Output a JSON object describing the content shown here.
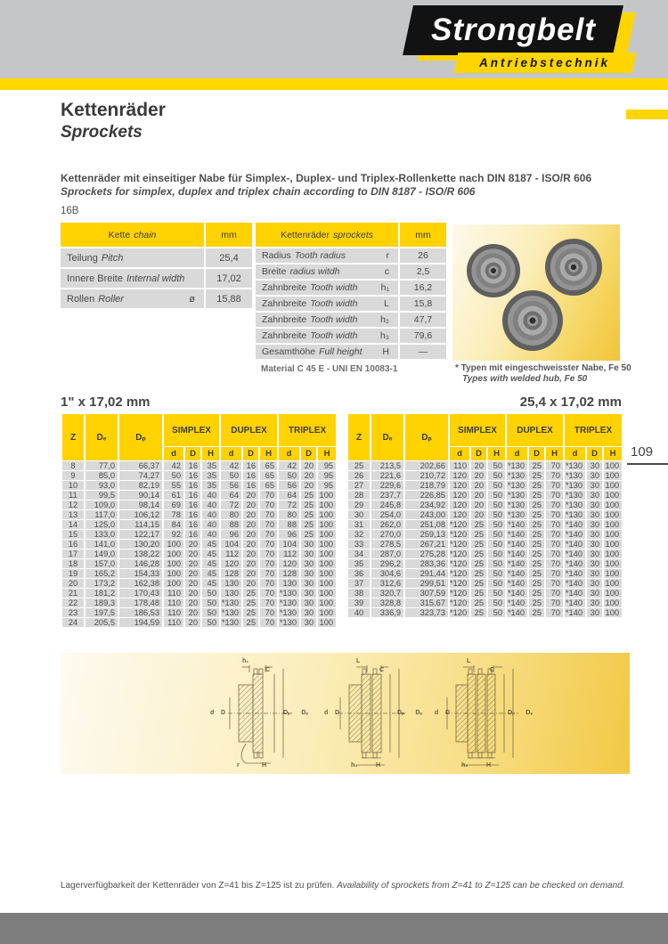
{
  "brand": {
    "name": "Strongbelt",
    "tagline": "Antriebstechnik"
  },
  "colors": {
    "brand_yellow": "#ffd500",
    "table_header_yellow": "#ffd200",
    "row_gray": "#d9d9d9",
    "top_band_gray": "#c5c6c8",
    "bottom_band_gray": "#7d7d7e"
  },
  "titles": {
    "de": "Kettenräder",
    "en": "Sprockets"
  },
  "intro": {
    "de": "Kettenräder mit einseitiger Nabe für Simplex-, Duplex- und Triplex-Rollenkette nach DIN 8187 - ISO/R 606",
    "en": "Sprockets for simplex, duplex and triplex chain according to DIN 8187 - ISO/R 606"
  },
  "series": "16B",
  "page_number": "109",
  "chain_table": {
    "header": {
      "label_de": "Kette",
      "label_en": "chain",
      "unit": "mm"
    },
    "rows": [
      {
        "de": "Teilung",
        "en": "Pitch",
        "sym": "",
        "value": "25,4"
      },
      {
        "de": "Innere Breite",
        "en": "Internal width",
        "sym": "",
        "value": "17,02"
      },
      {
        "de": "Rollen",
        "en": "Roller",
        "sym": "ø",
        "value": "15,88"
      }
    ]
  },
  "sprocket_table": {
    "header": {
      "label_de": "Kettenräder",
      "label_en": "sprockets",
      "unit": "mm"
    },
    "rows": [
      {
        "de": "Radius",
        "en": "Tooth radius",
        "sym": "r",
        "value": "26"
      },
      {
        "de": "Breite",
        "en": "radius witdh",
        "sym": "c",
        "value": "2,5"
      },
      {
        "de": "Zahnbreite",
        "en": "Tooth width",
        "sym": "h₁",
        "value": "16,2"
      },
      {
        "de": "Zahnbreite",
        "en": "Tooth width",
        "sym": "L",
        "value": "15,8"
      },
      {
        "de": "Zahnbreite",
        "en": "Tooth width",
        "sym": "h₂",
        "value": "47,7"
      },
      {
        "de": "Zahnbreite",
        "en": "Tooth width",
        "sym": "h₃",
        "value": "79,6"
      },
      {
        "de": "Gesamthöhe",
        "en": "Full height",
        "sym": "H",
        "value": "—"
      }
    ],
    "material_note": "Material C 45 E - UNI EN 10083-1"
  },
  "photo_note": {
    "de": "* Typen mit eingeschweisster Nabe, Fe 50",
    "en": "Types with welded hub, Fe 50"
  },
  "tables": {
    "headers": {
      "z": "Z",
      "de": "Dₑ",
      "dp": "Dₚ",
      "simplex": "SIMPLEX",
      "duplex": "DUPLEX",
      "triplex": "TRIPLEX",
      "d": "d",
      "D": "D",
      "H": "H"
    },
    "left": {
      "title": "1\" x 17,02 mm",
      "rows": [
        [
          "8",
          "77,0",
          "66,37",
          "42",
          "16",
          "35",
          "42",
          "16",
          "65",
          "42",
          "20",
          "95"
        ],
        [
          "9",
          "85,0",
          "74,27",
          "50",
          "16",
          "35",
          "50",
          "16",
          "65",
          "50",
          "20",
          "95"
        ],
        [
          "10",
          "93,0",
          "82,19",
          "55",
          "16",
          "35",
          "56",
          "16",
          "65",
          "56",
          "20",
          "95"
        ],
        [
          "11",
          "99,5",
          "90,14",
          "61",
          "16",
          "40",
          "64",
          "20",
          "70",
          "64",
          "25",
          "100"
        ],
        [
          "12",
          "109,0",
          "98,14",
          "69",
          "16",
          "40",
          "72",
          "20",
          "70",
          "72",
          "25",
          "100"
        ],
        [
          "13",
          "117,0",
          "106,12",
          "78",
          "16",
          "40",
          "80",
          "20",
          "70",
          "80",
          "25",
          "100"
        ],
        [
          "14",
          "125,0",
          "114,15",
          "84",
          "16",
          "40",
          "88",
          "20",
          "70",
          "88",
          "25",
          "100"
        ],
        [
          "15",
          "133,0",
          "122,17",
          "92",
          "16",
          "40",
          "96",
          "20",
          "70",
          "96",
          "25",
          "100"
        ],
        [
          "16",
          "141,0",
          "130,20",
          "100",
          "20",
          "45",
          "104",
          "20",
          "70",
          "104",
          "30",
          "100"
        ],
        [
          "17",
          "149,0",
          "138,22",
          "100",
          "20",
          "45",
          "112",
          "20",
          "70",
          "112",
          "30",
          "100"
        ],
        [
          "18",
          "157,0",
          "146,28",
          "100",
          "20",
          "45",
          "120",
          "20",
          "70",
          "120",
          "30",
          "100"
        ],
        [
          "19",
          "165,2",
          "154,33",
          "100",
          "20",
          "45",
          "128",
          "20",
          "70",
          "128",
          "30",
          "100"
        ],
        [
          "20",
          "173,2",
          "162,38",
          "100",
          "20",
          "45",
          "130",
          "20",
          "70",
          "130",
          "30",
          "100"
        ],
        [
          "21",
          "181,2",
          "170,43",
          "110",
          "20",
          "50",
          "130",
          "25",
          "70",
          "*130",
          "30",
          "100"
        ],
        [
          "22",
          "189,3",
          "178,48",
          "110",
          "20",
          "50",
          "*130",
          "25",
          "70",
          "*130",
          "30",
          "100"
        ],
        [
          "23",
          "197,5",
          "186,53",
          "110",
          "20",
          "50",
          "*130",
          "25",
          "70",
          "*130",
          "30",
          "100"
        ],
        [
          "24",
          "205,5",
          "194,59",
          "110",
          "20",
          "50",
          "*130",
          "25",
          "70",
          "*130",
          "30",
          "100"
        ]
      ]
    },
    "right": {
      "title": "25,4 x 17,02 mm",
      "rows": [
        [
          "25",
          "213,5",
          "202,66",
          "110",
          "20",
          "50",
          "*130",
          "25",
          "70",
          "*130",
          "30",
          "100"
        ],
        [
          "26",
          "221,6",
          "210,72",
          "120",
          "20",
          "50",
          "*130",
          "25",
          "70",
          "*130",
          "30",
          "100"
        ],
        [
          "27",
          "229,6",
          "218,79",
          "120",
          "20",
          "50",
          "*130",
          "25",
          "70",
          "*130",
          "30",
          "100"
        ],
        [
          "28",
          "237,7",
          "226,85",
          "120",
          "20",
          "50",
          "*130",
          "25",
          "70",
          "*130",
          "30",
          "100"
        ],
        [
          "29",
          "245,8",
          "234,92",
          "120",
          "20",
          "50",
          "*130",
          "25",
          "70",
          "*130",
          "30",
          "100"
        ],
        [
          "30",
          "254,0",
          "243,00",
          "120",
          "20",
          "50",
          "*130",
          "25",
          "70",
          "*130",
          "30",
          "100"
        ],
        [
          "31",
          "262,0",
          "251,08",
          "*120",
          "25",
          "50",
          "*140",
          "25",
          "70",
          "*140",
          "30",
          "100"
        ],
        [
          "32",
          "270,0",
          "259,13",
          "*120",
          "25",
          "50",
          "*140",
          "25",
          "70",
          "*140",
          "30",
          "100"
        ],
        [
          "33",
          "278,5",
          "267,21",
          "*120",
          "25",
          "50",
          "*140",
          "25",
          "70",
          "*140",
          "30",
          "100"
        ],
        [
          "34",
          "287,0",
          "275,28",
          "*120",
          "25",
          "50",
          "*140",
          "25",
          "70",
          "*140",
          "30",
          "100"
        ],
        [
          "35",
          "296,2",
          "283,36",
          "*120",
          "25",
          "50",
          "*140",
          "25",
          "70",
          "*140",
          "30",
          "100"
        ],
        [
          "36",
          "304,6",
          "291,44",
          "*120",
          "25",
          "50",
          "*140",
          "25",
          "70",
          "*140",
          "30",
          "100"
        ],
        [
          "37",
          "312,6",
          "299,51",
          "*120",
          "25",
          "50",
          "*140",
          "25",
          "70",
          "*140",
          "30",
          "100"
        ],
        [
          "38",
          "320,7",
          "307,59",
          "*120",
          "25",
          "50",
          "*140",
          "25",
          "70",
          "*140",
          "30",
          "100"
        ],
        [
          "39",
          "328,8",
          "315,67",
          "*120",
          "25",
          "50",
          "*140",
          "25",
          "70",
          "*140",
          "30",
          "100"
        ],
        [
          "40",
          "336,9",
          "323,73",
          "*120",
          "25",
          "50",
          "*140",
          "25",
          "70",
          "*140",
          "30",
          "100"
        ]
      ]
    }
  },
  "diagrams": [
    {
      "top1": "h₁",
      "top2": "C",
      "left1": "d",
      "left2": "D",
      "right1": "Dₚ",
      "right2": "Dₑ",
      "bottom1": "r",
      "bottom2": "H"
    },
    {
      "top1": "L",
      "top2": "C",
      "left1": "d",
      "left2": "D",
      "right1": "Dₚ",
      "right2": "Dₑ",
      "bottom1": "h₂",
      "bottom2": "H"
    },
    {
      "top1": "L",
      "top2": "C",
      "left1": "d",
      "left2": "D",
      "right1": "Dₚ",
      "right2": "Dₑ",
      "bottom1": "h₃",
      "bottom2": "H"
    }
  ],
  "footer": {
    "de": "Lagerverfügbarkeit der Kettenräder von Z=41 bis Z=125 ist zu prüfen.",
    "en": "Availability of sprockets from Z=41 to Z=125 can be checked on demand."
  }
}
